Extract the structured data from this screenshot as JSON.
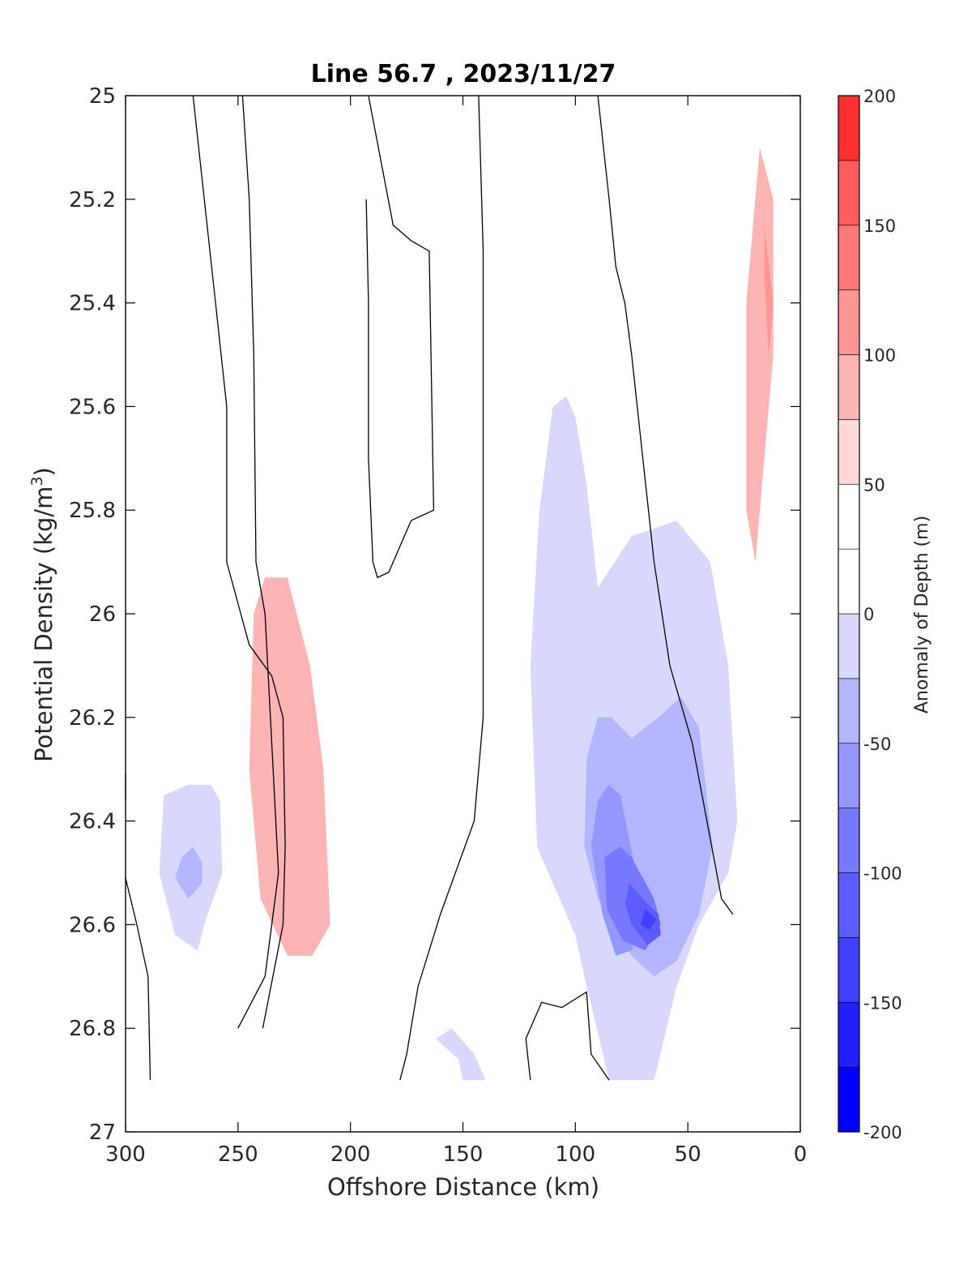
{
  "chart_data": {
    "type": "contour",
    "title": "Line 56.7 , 2023/11/27",
    "xlabel": "Offshore Distance (km)",
    "ylabel_main": "Potential Density (kg/m",
    "ylabel_sup": "3",
    "ylabel_close": ")",
    "xlim": [
      300,
      0
    ],
    "ylim": [
      25,
      27
    ],
    "x_reversed": true,
    "y_reversed": true,
    "xticks": [
      300,
      250,
      200,
      150,
      100,
      50,
      0
    ],
    "yticks": [
      25,
      25.2,
      25.4,
      25.6,
      25.8,
      26,
      26.2,
      26.4,
      26.6,
      26.8,
      27
    ],
    "colorbar": {
      "label": "Anomaly of Depth (m)",
      "range": [
        -200,
        200
      ],
      "ticks": [
        200,
        150,
        100,
        50,
        0,
        -50,
        -100,
        -150,
        -200
      ],
      "levels": [
        -200,
        -175,
        -150,
        -125,
        -100,
        -75,
        -50,
        -25,
        0,
        25,
        50,
        75,
        100,
        125,
        150,
        175,
        200
      ],
      "colors": [
        "#0000ff",
        "#2020ff",
        "#4040ff",
        "#5c5cff",
        "#7878ff",
        "#9696ff",
        "#b4b4ff",
        "#d8d8fc",
        "#ffffff",
        "#ffffff",
        "#fcd8d8",
        "#fcb4b4",
        "#ff9696",
        "#ff7878",
        "#ff5c5c",
        "#ff3030",
        "#ff0000"
      ]
    },
    "filled_regions": [
      {
        "level": 25,
        "points": [
          [
            190,
            25
          ],
          [
            160,
            25
          ],
          [
            160,
            25.5
          ],
          [
            162,
            26
          ],
          [
            170,
            26.2
          ],
          [
            182,
            26.5
          ],
          [
            190,
            26.8
          ],
          [
            236,
            26.8
          ],
          [
            244,
            26.6
          ],
          [
            252,
            26.4
          ],
          [
            253,
            26.1
          ],
          [
            248,
            25.95
          ],
          [
            230,
            25.88
          ],
          [
            210,
            25.85
          ],
          [
            200,
            25.6
          ],
          [
            197,
            25.2
          ]
        ]
      },
      {
        "level": 75,
        "points": [
          [
            243,
            26
          ],
          [
            238,
            25.93
          ],
          [
            228,
            25.93
          ],
          [
            218,
            26.1
          ],
          [
            212,
            26.3
          ],
          [
            209,
            26.6
          ],
          [
            217,
            26.66
          ],
          [
            228,
            26.66
          ],
          [
            240,
            26.55
          ],
          [
            245,
            26.3
          ]
        ]
      },
      {
        "level": 25,
        "points": [
          [
            30,
            25
          ],
          [
            22,
            25.1
          ],
          [
            22,
            25.8
          ],
          [
            25,
            26.08
          ],
          [
            29,
            25.9
          ],
          [
            30,
            25.3
          ]
        ]
      },
      {
        "level": 75,
        "points": [
          [
            18,
            25.1
          ],
          [
            12,
            25.2
          ],
          [
            12,
            25.5
          ],
          [
            20,
            25.9
          ],
          [
            24,
            25.8
          ],
          [
            24,
            25.4
          ],
          [
            20,
            25.2
          ]
        ]
      },
      {
        "level": 100,
        "points": [
          [
            16,
            25.25
          ],
          [
            12,
            25.4
          ],
          [
            14,
            25.5
          ],
          [
            16,
            25.35
          ]
        ]
      },
      {
        "level": 25,
        "points": [
          [
            30,
            26.58
          ],
          [
            37,
            26.78
          ],
          [
            35,
            26.88
          ],
          [
            30,
            26.88
          ],
          [
            28,
            26.7
          ]
        ]
      },
      {
        "level": -25,
        "points": [
          [
            104,
            25.58
          ],
          [
            110,
            25.6
          ],
          [
            116,
            25.8
          ],
          [
            120,
            26.1
          ],
          [
            117,
            26.45
          ],
          [
            100,
            26.62
          ],
          [
            96,
            26.7
          ],
          [
            85,
            26.9
          ],
          [
            65,
            26.9
          ],
          [
            55,
            26.72
          ],
          [
            45,
            26.6
          ],
          [
            32,
            26.5
          ],
          [
            28,
            26.4
          ],
          [
            32,
            26.1
          ],
          [
            40,
            25.9
          ],
          [
            55,
            25.82
          ],
          [
            75,
            25.85
          ],
          [
            90,
            25.95
          ],
          [
            95,
            25.75
          ],
          [
            100,
            25.62
          ]
        ]
      },
      {
        "level": -50,
        "points": [
          [
            90,
            26.2
          ],
          [
            95,
            26.28
          ],
          [
            96,
            26.45
          ],
          [
            90,
            26.55
          ],
          [
            82,
            26.6
          ],
          [
            75,
            26.66
          ],
          [
            65,
            26.7
          ],
          [
            55,
            26.67
          ],
          [
            45,
            26.58
          ],
          [
            39,
            26.45
          ],
          [
            45,
            26.22
          ],
          [
            53,
            26.16
          ],
          [
            63,
            26.2
          ],
          [
            75,
            26.24
          ],
          [
            84,
            26.2
          ]
        ]
      },
      {
        "level": -75,
        "points": [
          [
            85,
            26.33
          ],
          [
            80,
            26.35
          ],
          [
            73,
            26.5
          ],
          [
            72,
            26.6
          ],
          [
            75,
            26.65
          ],
          [
            82,
            26.66
          ],
          [
            88,
            26.58
          ],
          [
            93,
            26.45
          ],
          [
            90,
            26.36
          ]
        ]
      },
      {
        "level": -100,
        "points": [
          [
            80,
            26.45
          ],
          [
            75,
            26.47
          ],
          [
            65,
            26.55
          ],
          [
            62,
            26.6
          ],
          [
            69,
            26.65
          ],
          [
            79,
            26.63
          ],
          [
            86,
            26.57
          ],
          [
            87,
            26.47
          ]
        ]
      },
      {
        "level": -125,
        "points": [
          [
            76,
            26.52
          ],
          [
            70,
            26.55
          ],
          [
            63,
            26.58
          ],
          [
            62,
            26.62
          ],
          [
            68,
            26.64
          ],
          [
            75,
            26.6
          ],
          [
            78,
            26.56
          ]
        ]
      },
      {
        "level": -150,
        "points": [
          [
            69,
            26.57
          ],
          [
            64,
            26.59
          ],
          [
            67,
            26.61
          ],
          [
            71,
            26.6
          ]
        ]
      },
      {
        "level": -25,
        "points": [
          [
            262,
            26.33
          ],
          [
            258,
            26.36
          ],
          [
            257,
            26.5
          ],
          [
            265,
            26.6
          ],
          [
            268,
            26.65
          ],
          [
            278,
            26.62
          ],
          [
            285,
            26.5
          ],
          [
            283,
            26.35
          ],
          [
            272,
            26.33
          ]
        ]
      },
      {
        "level": -50,
        "points": [
          [
            270,
            26.45
          ],
          [
            266,
            26.48
          ],
          [
            266,
            26.52
          ],
          [
            272,
            26.55
          ],
          [
            278,
            26.51
          ],
          [
            275,
            26.47
          ]
        ]
      },
      {
        "level": -25,
        "points": [
          [
            162,
            26.82
          ],
          [
            152,
            26.86
          ],
          [
            150,
            26.9
          ],
          [
            140,
            26.9
          ],
          [
            145,
            26.85
          ],
          [
            155,
            26.8
          ]
        ]
      }
    ],
    "contour_lines": [
      [
        [
          300,
          26.31
        ],
        [
          300,
          26.36
        ]
      ],
      [
        [
          270,
          25
        ],
        [
          260,
          25.4
        ],
        [
          255,
          25.6
        ],
        [
          255,
          25.9
        ],
        [
          245,
          26.06
        ],
        [
          235,
          26.12
        ],
        [
          230,
          26.2
        ],
        [
          229,
          26.45
        ],
        [
          230,
          26.6
        ],
        [
          239,
          26.8
        ]
      ],
      [
        [
          300,
          26.51
        ],
        [
          295,
          26.6
        ],
        [
          290,
          26.7
        ],
        [
          289,
          26.9
        ]
      ],
      [
        [
          248,
          25
        ],
        [
          245,
          25.2
        ],
        [
          243,
          25.5
        ],
        [
          242,
          25.9
        ],
        [
          238,
          26
        ],
        [
          232,
          26.5
        ],
        [
          238,
          26.7
        ],
        [
          250,
          26.8
        ]
      ],
      [
        [
          192,
          25
        ],
        [
          181,
          25.25
        ],
        [
          173,
          25.28
        ],
        [
          165,
          25.3
        ],
        [
          163,
          25.8
        ],
        [
          173,
          25.82
        ],
        [
          183,
          25.92
        ],
        [
          188,
          25.93
        ],
        [
          190,
          25.9
        ],
        [
          192,
          25.7
        ],
        [
          192,
          25.4
        ],
        [
          193,
          25.2
        ]
      ],
      [
        [
          143,
          25
        ],
        [
          141,
          25.3
        ],
        [
          141,
          26.2
        ],
        [
          145,
          26.4
        ],
        [
          160,
          26.58
        ],
        [
          170,
          26.72
        ],
        [
          175,
          26.85
        ],
        [
          178,
          26.9
        ]
      ],
      [
        [
          90,
          25
        ],
        [
          85,
          25.2
        ],
        [
          82,
          25.33
        ],
        [
          78,
          25.4
        ],
        [
          75,
          25.5
        ],
        [
          70,
          25.7
        ],
        [
          65,
          25.9
        ],
        [
          58,
          26.1
        ],
        [
          48,
          26.25
        ],
        [
          35,
          26.55
        ],
        [
          30,
          26.58
        ]
      ],
      [
        [
          120,
          26.9
        ],
        [
          122,
          26.82
        ],
        [
          115,
          26.75
        ],
        [
          106,
          26.76
        ],
        [
          95,
          26.73
        ],
        [
          93,
          26.85
        ],
        [
          85,
          26.9
        ]
      ]
    ]
  }
}
